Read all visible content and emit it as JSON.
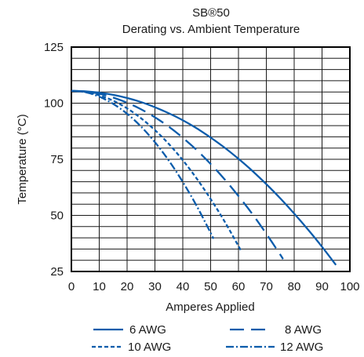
{
  "chart_data": {
    "type": "line",
    "title": "SB®50",
    "subtitle": "Derating vs. Ambient Temperature",
    "xlabel": "Amperes Applied",
    "ylabel": "Temperature (°C)",
    "xlim": [
      0,
      100
    ],
    "ylim": [
      25,
      125
    ],
    "xticks": [
      "0",
      "10",
      "20",
      "30",
      "40",
      "50",
      "60",
      "70",
      "80",
      "90",
      "100"
    ],
    "yticks": [
      "25",
      "50",
      "75",
      "100",
      "125"
    ],
    "grid": true,
    "legend_position": "bottom",
    "color": "#0b5cab",
    "series": [
      {
        "name": "6 AWG",
        "dash": "solid",
        "x": [
          0,
          5,
          10,
          15,
          20,
          25,
          30,
          35,
          40,
          45,
          50,
          55,
          60,
          65,
          70,
          75,
          80,
          85,
          90,
          95
        ],
        "y": [
          105.5,
          105.3,
          104.7,
          103.7,
          102.3,
          100.5,
          98.2,
          95.5,
          92.4,
          88.8,
          84.7,
          80.2,
          75.2,
          69.8,
          63.9,
          57.6,
          50.8,
          43.6,
          36.0,
          27.9
        ]
      },
      {
        "name": "8 AWG",
        "dash": "long-dash",
        "x": [
          0,
          5,
          10,
          15,
          20,
          25,
          30,
          35,
          40,
          45,
          50,
          55,
          60,
          65,
          70,
          75,
          76
        ],
        "y": [
          105.5,
          105.2,
          104.2,
          102.5,
          100.2,
          97.3,
          93.7,
          89.5,
          84.6,
          79.1,
          72.9,
          66.1,
          58.6,
          50.6,
          41.8,
          32.5,
          30.5
        ]
      },
      {
        "name": "10 AWG",
        "dash": "short-dash",
        "x": [
          0,
          5,
          10,
          15,
          20,
          25,
          30,
          35,
          40,
          45,
          50,
          55,
          60,
          61
        ],
        "y": [
          105.5,
          105.0,
          103.5,
          101.1,
          97.7,
          93.3,
          88.0,
          81.8,
          74.6,
          66.4,
          57.3,
          47.3,
          36.3,
          34.0
        ]
      },
      {
        "name": "12 AWG",
        "dash": "dash-dot",
        "x": [
          0,
          5,
          10,
          15,
          20,
          25,
          30,
          35,
          40,
          45,
          50,
          51
        ],
        "y": [
          105.5,
          104.9,
          102.9,
          99.7,
          95.3,
          89.6,
          82.6,
          74.4,
          64.9,
          54.2,
          42.2,
          39.6
        ]
      }
    ]
  }
}
